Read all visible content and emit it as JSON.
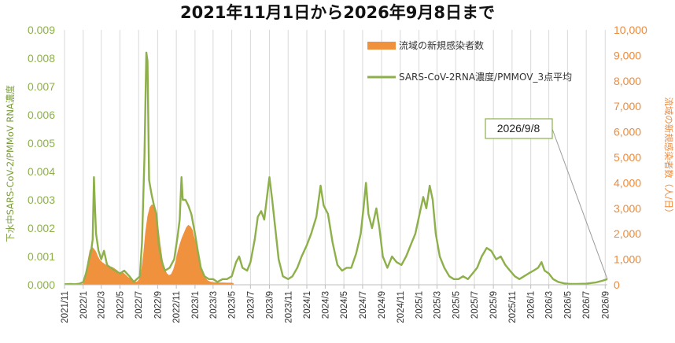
{
  "chart_data": {
    "type": "line+bar",
    "title": "2021年11月1日から2026年9月8日まで",
    "ylabel_left": "下水中SARS-CoV-2/PMMoV RNA濃度",
    "ylabel_right": "流域の新規感染者数（人/日）",
    "ylim_left": [
      0,
      0.009
    ],
    "ylim_right": [
      0,
      10000
    ],
    "yticks_left": [
      "0.000",
      "0.001",
      "0.002",
      "0.003",
      "0.004",
      "0.005",
      "0.006",
      "0.007",
      "0.008",
      "0.009"
    ],
    "yticks_right": [
      "0",
      "1,000",
      "2,000",
      "3,000",
      "4,000",
      "5,000",
      "6,000",
      "7,000",
      "8,000",
      "9,000",
      "10,000"
    ],
    "xticks": [
      "2021/11",
      "2022/1",
      "2022/3",
      "2022/5",
      "2022/7",
      "2022/9",
      "2022/11",
      "2023/1",
      "2023/3",
      "2023/5",
      "2023/7",
      "2023/9",
      "2023/11",
      "2024/1",
      "2024/3",
      "2024/5",
      "2024/7",
      "2024/9",
      "2024/11",
      "2025/1",
      "2025/3",
      "2025/5",
      "2025/7",
      "2025/9",
      "2025/11",
      "2026/1",
      "2026/3",
      "2026/5",
      "2026/7",
      "2026/9"
    ],
    "grid": "vertical",
    "legend_position": "top-center",
    "colors": {
      "line": "#8db04a",
      "bars": "#f0913e",
      "left_axis": "#8db04a",
      "right_axis": "#ee8a3c"
    },
    "series": [
      {
        "name": "流域の新規感染者数",
        "type": "bar",
        "axis": "right",
        "points": [
          [
            "2021-11-01",
            0
          ],
          [
            "2021-12-15",
            0
          ],
          [
            "2022-01-01",
            50
          ],
          [
            "2022-01-08",
            300
          ],
          [
            "2022-01-15",
            900
          ],
          [
            "2022-01-22",
            1350
          ],
          [
            "2022-01-29",
            1500
          ],
          [
            "2022-02-05",
            1420
          ],
          [
            "2022-02-12",
            1300
          ],
          [
            "2022-02-19",
            1100
          ],
          [
            "2022-02-26",
            950
          ],
          [
            "2022-03-05",
            880
          ],
          [
            "2022-03-12",
            820
          ],
          [
            "2022-03-19",
            760
          ],
          [
            "2022-03-26",
            700
          ],
          [
            "2022-04-02",
            720
          ],
          [
            "2022-04-09",
            680
          ],
          [
            "2022-04-16",
            620
          ],
          [
            "2022-04-23",
            560
          ],
          [
            "2022-04-30",
            480
          ],
          [
            "2022-05-07",
            500
          ],
          [
            "2022-05-14",
            460
          ],
          [
            "2022-05-21",
            380
          ],
          [
            "2022-05-28",
            300
          ],
          [
            "2022-06-04",
            250
          ],
          [
            "2022-06-11",
            180
          ],
          [
            "2022-06-18",
            130
          ],
          [
            "2022-06-25",
            120
          ],
          [
            "2022-07-02",
            200
          ],
          [
            "2022-07-09",
            500
          ],
          [
            "2022-07-16",
            1200
          ],
          [
            "2022-07-23",
            2100
          ],
          [
            "2022-07-30",
            2700
          ],
          [
            "2022-08-06",
            3050
          ],
          [
            "2022-08-13",
            3150
          ],
          [
            "2022-08-20",
            3100
          ],
          [
            "2022-08-27",
            2900
          ],
          [
            "2022-09-03",
            2300
          ],
          [
            "2022-09-10",
            1600
          ],
          [
            "2022-09-17",
            1000
          ],
          [
            "2022-09-24",
            650
          ],
          [
            "2022-10-01",
            450
          ],
          [
            "2022-10-08",
            380
          ],
          [
            "2022-10-15",
            420
          ],
          [
            "2022-10-22",
            600
          ],
          [
            "2022-10-29",
            900
          ],
          [
            "2022-11-05",
            1300
          ],
          [
            "2022-11-12",
            1600
          ],
          [
            "2022-11-19",
            1850
          ],
          [
            "2022-11-26",
            2050
          ],
          [
            "2022-12-03",
            2250
          ],
          [
            "2022-12-10",
            2350
          ],
          [
            "2022-12-17",
            2300
          ],
          [
            "2022-12-24",
            2150
          ],
          [
            "2022-12-31",
            1800
          ],
          [
            "2023-01-07",
            1500
          ],
          [
            "2023-01-14",
            1100
          ],
          [
            "2023-01-21",
            700
          ],
          [
            "2023-01-28",
            450
          ],
          [
            "2023-02-04",
            280
          ],
          [
            "2023-02-11",
            180
          ],
          [
            "2023-02-18",
            130
          ],
          [
            "2023-02-25",
            110
          ],
          [
            "2023-03-04",
            100
          ],
          [
            "2023-03-18",
            90
          ],
          [
            "2023-04-01",
            90
          ],
          [
            "2023-04-15",
            80
          ],
          [
            "2023-04-29",
            80
          ],
          [
            "2023-05-06",
            70
          ],
          [
            "2023-05-08",
            0
          ],
          [
            "2026-09-08",
            0
          ]
        ]
      },
      {
        "name": "SARS-CoV-2RNA濃度/PMMOV_3点平均",
        "type": "line",
        "axis": "left",
        "points": [
          [
            "2021-11-01",
            2e-05
          ],
          [
            "2021-11-20",
            3e-05
          ],
          [
            "2021-12-05",
            2e-05
          ],
          [
            "2021-12-20",
            4e-05
          ],
          [
            "2022-01-01",
            0.0001
          ],
          [
            "2022-01-10",
            0.0004
          ],
          [
            "2022-01-20",
            0.0009
          ],
          [
            "2022-01-27",
            0.0012
          ],
          [
            "2022-02-01",
            0.0016
          ],
          [
            "2022-02-05",
            0.0038
          ],
          [
            "2022-02-08",
            0.0029
          ],
          [
            "2022-02-12",
            0.0018
          ],
          [
            "2022-02-20",
            0.0012
          ],
          [
            "2022-03-01",
            0.0009
          ],
          [
            "2022-03-10",
            0.0012
          ],
          [
            "2022-03-20",
            0.0007
          ],
          [
            "2022-04-01",
            0.0006
          ],
          [
            "2022-04-15",
            0.0005
          ],
          [
            "2022-05-01",
            0.0004
          ],
          [
            "2022-05-15",
            0.0005
          ],
          [
            "2022-06-01",
            0.0003
          ],
          [
            "2022-06-15",
            0.0001
          ],
          [
            "2022-06-25",
            0.0002
          ],
          [
            "2022-07-05",
            0.0003
          ],
          [
            "2022-07-12",
            0.0015
          ],
          [
            "2022-07-20",
            0.0045
          ],
          [
            "2022-07-26",
            0.0082
          ],
          [
            "2022-07-30",
            0.0079
          ],
          [
            "2022-08-04",
            0.0037
          ],
          [
            "2022-08-12",
            0.0032
          ],
          [
            "2022-08-20",
            0.0028
          ],
          [
            "2022-08-28",
            0.0025
          ],
          [
            "2022-09-05",
            0.0014
          ],
          [
            "2022-09-15",
            0.0008
          ],
          [
            "2022-09-25",
            0.0005
          ],
          [
            "2022-10-10",
            0.0006
          ],
          [
            "2022-10-25",
            0.0009
          ],
          [
            "2022-11-05",
            0.0017
          ],
          [
            "2022-11-12",
            0.0023
          ],
          [
            "2022-11-18",
            0.0038
          ],
          [
            "2022-11-22",
            0.003
          ],
          [
            "2022-12-01",
            0.003
          ],
          [
            "2022-12-10",
            0.0028
          ],
          [
            "2022-12-20",
            0.0025
          ],
          [
            "2023-01-01",
            0.0018
          ],
          [
            "2023-01-10",
            0.0012
          ],
          [
            "2023-01-20",
            0.0006
          ],
          [
            "2023-02-01",
            0.0003
          ],
          [
            "2023-02-15",
            0.0002
          ],
          [
            "2023-03-01",
            0.0002
          ],
          [
            "2023-03-15",
            0.0001
          ],
          [
            "2023-04-01",
            0.0002
          ],
          [
            "2023-04-15",
            0.0002
          ],
          [
            "2023-05-01",
            0.0003
          ],
          [
            "2023-05-15",
            0.0008
          ],
          [
            "2023-05-25",
            0.001
          ],
          [
            "2023-06-05",
            0.0006
          ],
          [
            "2023-06-20",
            0.0005
          ],
          [
            "2023-07-01",
            0.0008
          ],
          [
            "2023-07-15",
            0.0016
          ],
          [
            "2023-07-25",
            0.0024
          ],
          [
            "2023-08-05",
            0.0026
          ],
          [
            "2023-08-15",
            0.0023
          ],
          [
            "2023-08-25",
            0.0032
          ],
          [
            "2023-09-01",
            0.0038
          ],
          [
            "2023-09-10",
            0.003
          ],
          [
            "2023-09-20",
            0.002
          ],
          [
            "2023-10-01",
            0.0009
          ],
          [
            "2023-10-15",
            0.0003
          ],
          [
            "2023-11-01",
            0.0002
          ],
          [
            "2023-11-15",
            0.0003
          ],
          [
            "2023-12-01",
            0.0006
          ],
          [
            "2023-12-15",
            0.001
          ],
          [
            "2024-01-01",
            0.0014
          ],
          [
            "2024-01-15",
            0.0018
          ],
          [
            "2024-02-01",
            0.0024
          ],
          [
            "2024-02-15",
            0.0035
          ],
          [
            "2024-02-25",
            0.0028
          ],
          [
            "2024-03-10",
            0.0025
          ],
          [
            "2024-03-25",
            0.0015
          ],
          [
            "2024-04-10",
            0.0007
          ],
          [
            "2024-04-25",
            0.0005
          ],
          [
            "2024-05-10",
            0.0006
          ],
          [
            "2024-05-25",
            0.0006
          ],
          [
            "2024-06-10",
            0.0011
          ],
          [
            "2024-06-25",
            0.0018
          ],
          [
            "2024-07-05",
            0.0028
          ],
          [
            "2024-07-12",
            0.0036
          ],
          [
            "2024-07-20",
            0.0025
          ],
          [
            "2024-08-01",
            0.002
          ],
          [
            "2024-08-15",
            0.0027
          ],
          [
            "2024-08-25",
            0.002
          ],
          [
            "2024-09-05",
            0.001
          ],
          [
            "2024-09-20",
            0.0006
          ],
          [
            "2024-10-05",
            0.001
          ],
          [
            "2024-10-20",
            0.0008
          ],
          [
            "2024-11-05",
            0.0007
          ],
          [
            "2024-11-20",
            0.001
          ],
          [
            "2024-12-05",
            0.0014
          ],
          [
            "2024-12-20",
            0.0018
          ],
          [
            "2025-01-05",
            0.0026
          ],
          [
            "2025-01-15",
            0.0031
          ],
          [
            "2025-01-25",
            0.0027
          ],
          [
            "2025-02-05",
            0.0035
          ],
          [
            "2025-02-15",
            0.003
          ],
          [
            "2025-02-25",
            0.0018
          ],
          [
            "2025-03-10",
            0.001
          ],
          [
            "2025-03-25",
            0.0006
          ],
          [
            "2025-04-10",
            0.0003
          ],
          [
            "2025-04-25",
            0.0002
          ],
          [
            "2025-05-10",
            0.0002
          ],
          [
            "2025-05-25",
            0.0003
          ],
          [
            "2025-06-10",
            0.0002
          ],
          [
            "2025-06-25",
            0.0004
          ],
          [
            "2025-07-10",
            0.0006
          ],
          [
            "2025-07-25",
            0.001
          ],
          [
            "2025-08-10",
            0.0013
          ],
          [
            "2025-08-25",
            0.0012
          ],
          [
            "2025-09-10",
            0.0009
          ],
          [
            "2025-09-25",
            0.001
          ],
          [
            "2025-10-10",
            0.0007
          ],
          [
            "2025-10-25",
            0.0005
          ],
          [
            "2025-11-10",
            0.0003
          ],
          [
            "2025-11-25",
            0.0002
          ],
          [
            "2025-12-10",
            0.0003
          ],
          [
            "2025-12-25",
            0.0004
          ],
          [
            "2026-01-10",
            0.0005
          ],
          [
            "2026-01-25",
            0.0006
          ],
          [
            "2026-02-05",
            0.0008
          ],
          [
            "2026-02-15",
            0.0005
          ],
          [
            "2026-03-01",
            0.0004
          ],
          [
            "2026-03-15",
            0.0002
          ],
          [
            "2026-04-01",
            0.0001
          ],
          [
            "2026-04-20",
            5e-05
          ],
          [
            "2026-05-10",
            3e-05
          ],
          [
            "2026-06-01",
            3e-05
          ],
          [
            "2026-07-01",
            4e-05
          ],
          [
            "2026-08-01",
            8e-05
          ],
          [
            "2026-08-25",
            0.00015
          ],
          [
            "2026-09-08",
            0.0002
          ]
        ]
      }
    ],
    "annotations": [
      {
        "text": "2026/9/8",
        "date": "2026-09-08",
        "value": 0.0002
      }
    ]
  }
}
